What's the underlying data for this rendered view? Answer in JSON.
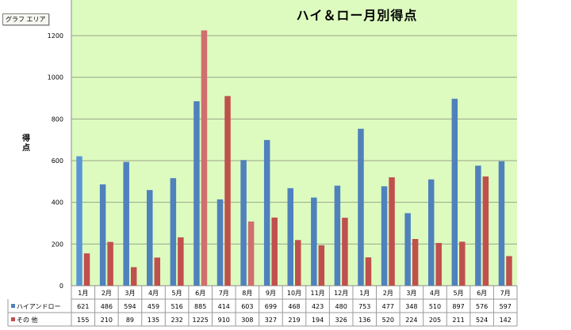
{
  "tooltip": "グラフ エリア",
  "chart_data": {
    "type": "bar",
    "title": "ハイ＆ロー月別得点",
    "ylabel": "得点",
    "xlabel": "",
    "ylim": [
      0,
      1200
    ],
    "yticks": [
      0,
      200,
      400,
      600,
      800,
      1000,
      1200
    ],
    "grid": true,
    "legend": "table-bottom",
    "categories": [
      "1月",
      "2月",
      "3月",
      "4月",
      "5月",
      "6月",
      "7月",
      "8月",
      "9月",
      "10月",
      "11月",
      "12月",
      "1月",
      "2月",
      "3月",
      "4月",
      "5月",
      "6月",
      "7月"
    ],
    "series": [
      {
        "name": "ハイアンドロー",
        "color": "#4f81bd",
        "values": [
          621,
          486,
          594,
          459,
          516,
          885,
          414,
          603,
          699,
          468,
          423,
          480,
          753,
          477,
          348,
          510,
          897,
          576,
          597
        ]
      },
      {
        "name": "その 他",
        "color": "#c0504d",
        "values": [
          155,
          210,
          89,
          135,
          232,
          1225,
          910,
          308,
          327,
          219,
          194,
          326,
          136,
          520,
          224,
          205,
          211,
          524,
          142
        ]
      }
    ],
    "colors": {
      "plot_bg": "#ddfbbf",
      "grid": "#9aa58a"
    }
  }
}
